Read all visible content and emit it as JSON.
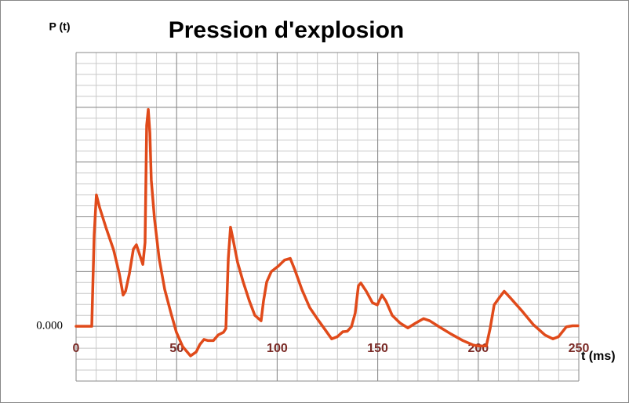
{
  "chart_data": {
    "type": "line",
    "title": "Pression d'explosion",
    "y_label": "P (t)",
    "x_label": "t (ms)",
    "xlim": [
      0,
      250
    ],
    "xticks": [
      0,
      50,
      100,
      150,
      200,
      250
    ],
    "ylim": [
      -1,
      5
    ],
    "yticks": [
      {
        "value": 0,
        "label": "0.000"
      }
    ],
    "grid": true,
    "series": [
      {
        "name": "P (t)",
        "color": "#e04a1a",
        "x": [
          0,
          7.8,
          9.0,
          10.1,
          11.7,
          14.8,
          18.7,
          21.5,
          23.4,
          24.6,
          26.5,
          28.5,
          30.0,
          31.6,
          33.2,
          34.3,
          35.1,
          35.9,
          36.7,
          37.4,
          39.0,
          41.3,
          44.1,
          47.2,
          49.9,
          53.0,
          56.9,
          59.7,
          61.6,
          63.6,
          65.5,
          68.3,
          70.6,
          73.3,
          74.5,
          75.7,
          76.8,
          78.0,
          80.3,
          83.1,
          86.2,
          88.9,
          92.0,
          93.2,
          94.8,
          97.1,
          100.6,
          103.7,
          106.5,
          108.8,
          112.3,
          116.2,
          120.1,
          124.0,
          127.1,
          129.9,
          132.6,
          134.9,
          136.9,
          138.8,
          140.4,
          141.6,
          144.3,
          147.4,
          149.8,
          152.1,
          154.1,
          157.2,
          161.1,
          165.0,
          168.9,
          172.8,
          175.9,
          180.6,
          186.4,
          192.3,
          197.3,
          200.1,
          204.0,
          205.9,
          207.9,
          210.6,
          212.9,
          215.7,
          221.5,
          227.4,
          233.2,
          237.1,
          239.9,
          243.8,
          246.9,
          249.6
        ],
        "values": [
          0,
          0,
          1.67,
          2.4,
          2.17,
          1.81,
          1.39,
          0.96,
          0.57,
          0.64,
          0.96,
          1.41,
          1.49,
          1.31,
          1.13,
          1.53,
          3.67,
          3.96,
          3.53,
          2.67,
          1.96,
          1.24,
          0.67,
          0.24,
          -0.11,
          -0.37,
          -0.54,
          -0.47,
          -0.33,
          -0.24,
          -0.26,
          -0.26,
          -0.16,
          -0.11,
          -0.04,
          1.24,
          1.81,
          1.6,
          1.17,
          0.81,
          0.46,
          0.2,
          0.1,
          0.46,
          0.81,
          1.0,
          1.1,
          1.21,
          1.24,
          1.03,
          0.67,
          0.34,
          0.13,
          -0.07,
          -0.23,
          -0.19,
          -0.1,
          -0.09,
          -0.01,
          0.24,
          0.74,
          0.79,
          0.64,
          0.43,
          0.39,
          0.57,
          0.46,
          0.2,
          0.06,
          -0.03,
          0.06,
          0.14,
          0.1,
          -0.01,
          -0.14,
          -0.26,
          -0.34,
          -0.36,
          -0.36,
          -0.04,
          0.39,
          0.53,
          0.64,
          0.53,
          0.29,
          0.03,
          -0.16,
          -0.23,
          -0.19,
          -0.01,
          0.01,
          0.01
        ]
      }
    ]
  }
}
